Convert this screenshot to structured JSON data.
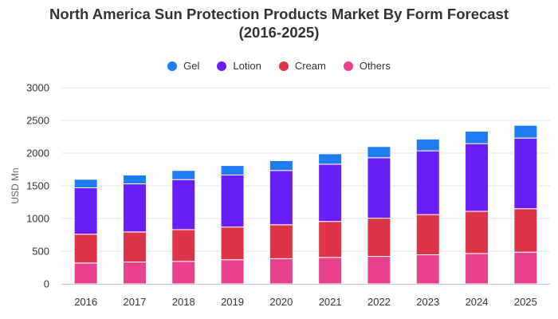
{
  "chart_data": {
    "type": "bar",
    "stacked": true,
    "title_line1": "North America Sun Protection Products Market By Form Forecast",
    "title_line2": "(2016-2025)",
    "xlabel": "",
    "ylabel": "USD Mn",
    "ylim": [
      0,
      3000
    ],
    "yticks": [
      "0",
      "500",
      "1000",
      "1500",
      "2000",
      "2500",
      "3000"
    ],
    "categories": [
      "2016",
      "2017",
      "2018",
      "2019",
      "2020",
      "2021",
      "2022",
      "2023",
      "2024",
      "2025"
    ],
    "series": [
      {
        "name": "Others",
        "color": "#e8418d",
        "values": [
          320,
          335,
          345,
          370,
          385,
          405,
          420,
          445,
          465,
          485
        ]
      },
      {
        "name": "Cream",
        "color": "#de3546",
        "values": [
          440,
          460,
          485,
          500,
          520,
          550,
          585,
          615,
          645,
          665
        ]
      },
      {
        "name": "Lotion",
        "color": "#6a1ef5",
        "values": [
          710,
          735,
          765,
          795,
          830,
          875,
          925,
          975,
          1035,
          1080
        ]
      },
      {
        "name": "Gel",
        "color": "#1f7cf0",
        "values": [
          130,
          135,
          140,
          145,
          150,
          160,
          170,
          180,
          190,
          195
        ]
      }
    ],
    "legend": [
      {
        "name": "Gel",
        "color": "#1f7cf0"
      },
      {
        "name": "Lotion",
        "color": "#6a1ef5"
      },
      {
        "name": "Cream",
        "color": "#de3546"
      },
      {
        "name": "Others",
        "color": "#e8418d"
      }
    ],
    "legend_position": "top-center",
    "grid": true
  }
}
